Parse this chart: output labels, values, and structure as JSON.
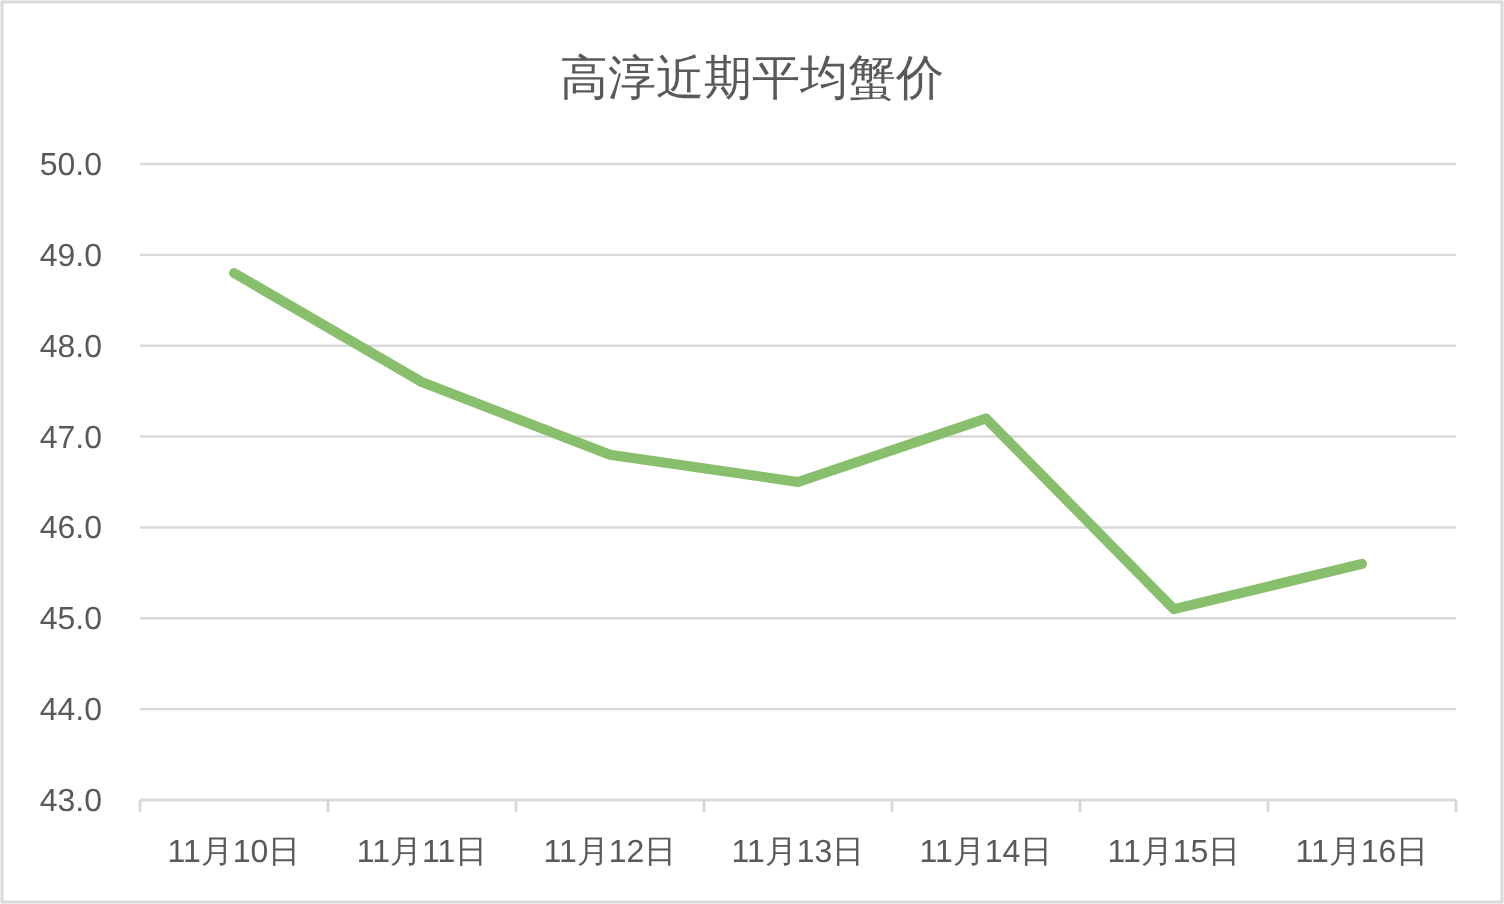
{
  "chart_data": {
    "type": "line",
    "title": "高淳近期平均蟹价",
    "categories": [
      "11月10日",
      "11月11日",
      "11月12日",
      "11月13日",
      "11月14日",
      "11月15日",
      "11月16日"
    ],
    "series": [
      {
        "color": "#88bf6c",
        "values": [
          48.8,
          47.6,
          46.8,
          46.5,
          47.2,
          45.1,
          45.6
        ]
      }
    ],
    "ylim": [
      43,
      50
    ],
    "yticks": [
      {
        "value": 43,
        "label": "43.0"
      },
      {
        "value": 44,
        "label": "44.0"
      },
      {
        "value": 45,
        "label": "45.0"
      },
      {
        "value": 46,
        "label": "46.0"
      },
      {
        "value": 47,
        "label": "47.0"
      },
      {
        "value": 48,
        "label": "48.0"
      },
      {
        "value": 49,
        "label": "49.0"
      },
      {
        "value": 50,
        "label": "50.0"
      }
    ],
    "grid": "y",
    "line_style": "solid"
  }
}
